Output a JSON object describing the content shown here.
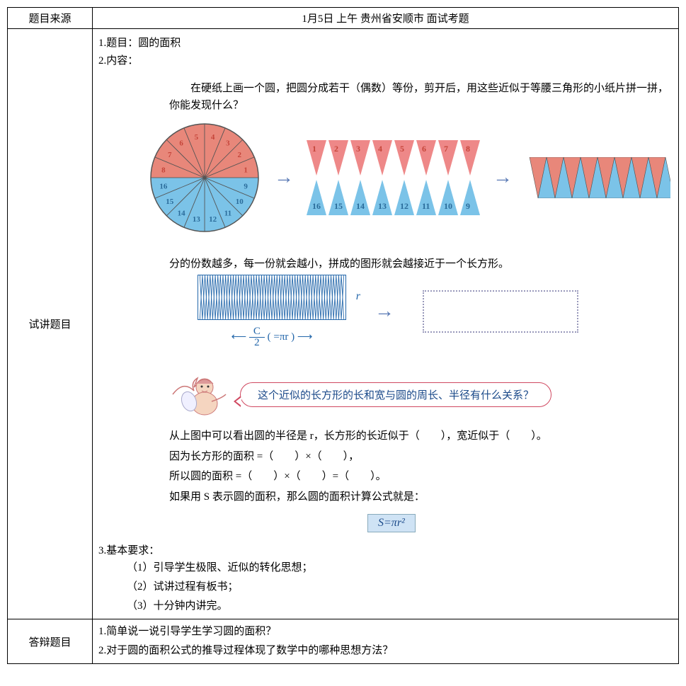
{
  "row1": {
    "label": "题目来源",
    "content": "1月5日 上午 贵州省安顺市 面试考题"
  },
  "row2": {
    "label": "试讲题目",
    "h1": "1.题目：圆的面积",
    "h2": "2.内容：",
    "intro": "　　在硬纸上画一个圆，把圆分成若干（偶数）等份，剪开后，用这些近似于等腰三角形的小纸片拼一拼，你能发现什么？",
    "topNums": [
      "1",
      "2",
      "3",
      "4",
      "5",
      "6",
      "7",
      "8"
    ],
    "bottomNums": [
      "16",
      "15",
      "14",
      "13",
      "12",
      "11",
      "10",
      "9"
    ],
    "circleLabels": [
      "1",
      "2",
      "3",
      "4",
      "5",
      "6",
      "7",
      "8",
      "9",
      "10",
      "11",
      "12",
      "13",
      "14",
      "15",
      "16"
    ],
    "intro2": "分的份数越多，每一份就会越小，拼成的图形就会越接近于一个长方形。",
    "rLabel": "r",
    "cTop": "C",
    "cBot": "2",
    "cSuf": "( =πr )",
    "speech": "这个近似的长方形的长和宽与圆的周长、半径有什么关系？",
    "der1": "从上图中可以看出圆的半径是 r，长方形的长近似于（　　），宽近似于（　　）。",
    "der2": "因为长方形的面积 =（　　）×（　　），",
    "der3": "所以圆的面积 =（　　）×（　　）=（　　）。",
    "der4": "如果用 S 表示圆的面积，那么圆的面积计算公式就是：",
    "formula": "S=πr²",
    "req": "3.基本要求：",
    "req1": "（1）引导学生极限、近似的转化思想；",
    "req2": "（2）试讲过程有板书；",
    "req3": "（3）十分钟内讲完。"
  },
  "row3": {
    "label": "答辩题目",
    "l1": "1.简单说一说引导学生学习圆的面积？",
    "l2": "2.对于圆的面积公式的推导过程体现了数学中的哪种思想方法？"
  },
  "colors": {
    "red": "#e8877a",
    "blue": "#7bc3e8",
    "darkred": "#c5453a",
    "darkblue": "#2a6b9a",
    "border": "#555"
  }
}
